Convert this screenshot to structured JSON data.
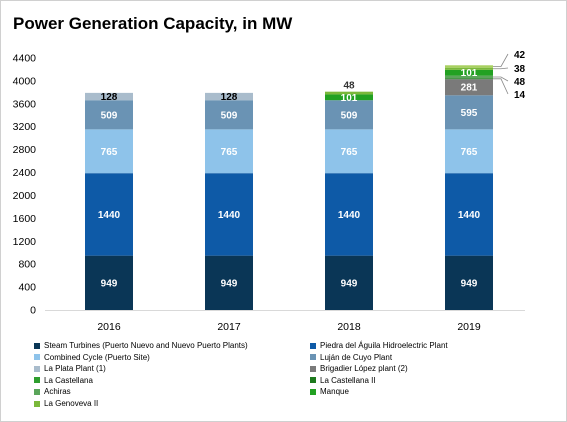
{
  "chart_data": {
    "type": "bar",
    "stacked": true,
    "title": "Power Generation Capacity, in MW",
    "xlabel": "",
    "ylabel": "",
    "categories": [
      "2016",
      "2017",
      "2018",
      "2019"
    ],
    "ylim": [
      0,
      4400
    ],
    "yticks": [
      0,
      400,
      800,
      1200,
      1600,
      2000,
      2400,
      2800,
      3200,
      3600,
      4000,
      4400
    ],
    "grid": false,
    "legend_position": "bottom",
    "series": [
      {
        "name": "Steam Turbines (Puerto Nuevo and Nuevo Puerto Plants)",
        "values": [
          949,
          949,
          949,
          949
        ],
        "labels": [
          "949",
          "949",
          "949",
          "949"
        ],
        "color": "#0a3656"
      },
      {
        "name": "Piedra del Águila Hidroelectric Plant",
        "values": [
          1440,
          1440,
          1440,
          1440
        ],
        "labels": [
          "1440",
          "1440",
          "1440",
          "1440"
        ],
        "color": "#0e5aa7"
      },
      {
        "name": "Combined Cycle (Puerto Site)",
        "values": [
          765,
          765,
          765,
          765
        ],
        "labels": [
          "765",
          "765",
          "765",
          "765"
        ],
        "color": "#8ec3ea"
      },
      {
        "name": "Luján de Cuyo Plant",
        "values": [
          509,
          509,
          509,
          595
        ],
        "labels": [
          "509",
          "509",
          "509",
          "595"
        ],
        "color": "#6a93b4"
      },
      {
        "name": "La Plata Plant (1)",
        "values": [
          128,
          128,
          0,
          0
        ],
        "labels": [
          "128",
          "128",
          "",
          ""
        ],
        "color": "#a9bccc"
      },
      {
        "name": "Brigadier López plant (2)",
        "values": [
          0,
          0,
          0,
          281
        ],
        "labels": [
          "",
          "",
          "",
          "281"
        ],
        "color": "#7a7a7a"
      },
      {
        "name": "La Castellana",
        "values": [
          0,
          0,
          0,
          0
        ],
        "labels": [
          "",
          "",
          "",
          ""
        ],
        "color": "#2e9e2e"
      },
      {
        "name": "La Castellana II",
        "values": [
          0,
          0,
          0,
          14
        ],
        "labels": [
          "",
          "",
          "",
          "14"
        ],
        "color": "#1e7a1e"
      },
      {
        "name": "Achiras",
        "values": [
          0,
          0,
          0,
          48
        ],
        "labels": [
          "",
          "",
          "",
          "48"
        ],
        "color": "#5aa55a"
      },
      {
        "name": "Manque",
        "values": [
          0,
          0,
          101,
          101
        ],
        "labels": [
          "",
          "",
          "101",
          "101"
        ],
        "color": "#22a122"
      },
      {
        "name": "La Genoveva II",
        "values": [
          0,
          0,
          48,
          38
        ],
        "labels": [
          "",
          "",
          "48",
          "38"
        ],
        "color": "#7ab83a"
      },
      {
        "name": "",
        "values": [
          0,
          0,
          0,
          42
        ],
        "labels": [
          "",
          "",
          "",
          "42"
        ],
        "color": "#a8d060"
      }
    ]
  }
}
